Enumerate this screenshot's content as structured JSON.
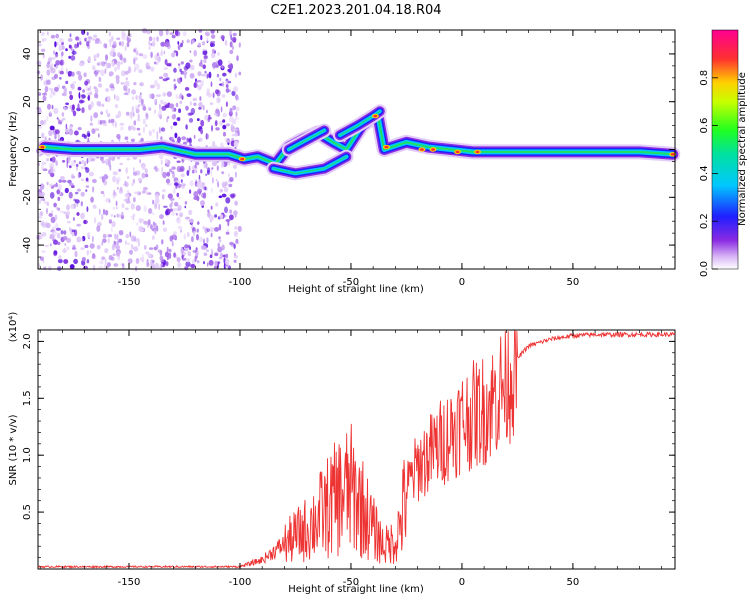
{
  "title": "C2E1.2023.201.04.18.R04",
  "colors": {
    "snr_line": "#ee3333",
    "axis": "#000000",
    "scatter_purple": "#8a2be2"
  },
  "chart_data": [
    {
      "type": "heatmap",
      "xlabel": "Height of straight line (km)",
      "ylabel": "Frequency (Hz)",
      "xlim": [
        -191,
        96
      ],
      "ylim": [
        -50,
        50
      ],
      "xticks": [
        -150,
        -100,
        -50,
        0,
        50
      ],
      "yticks": [
        -40,
        -20,
        0,
        20,
        40
      ],
      "colorbar": {
        "label": "Normalized spectral amplitude",
        "range": [
          0,
          1
        ],
        "ticks": [
          "0.0",
          "0.2",
          "0.4",
          "0.6",
          "0.8"
        ]
      },
      "ridge": [
        {
          "x": -188,
          "y": 1
        },
        {
          "x": -175,
          "y": 0
        },
        {
          "x": -160,
          "y": 0
        },
        {
          "x": -145,
          "y": 0
        },
        {
          "x": -135,
          "y": 1
        },
        {
          "x": -120,
          "y": -2
        },
        {
          "x": -105,
          "y": -2
        },
        {
          "x": -98,
          "y": -4
        },
        {
          "x": -92,
          "y": -3
        },
        {
          "x": -84,
          "y": -6
        },
        {
          "x": -78,
          "y": 1
        },
        {
          "x": -72,
          "y": 4
        },
        {
          "x": -65,
          "y": 7
        },
        {
          "x": -58,
          "y": 3
        },
        {
          "x": -52,
          "y": 0
        },
        {
          "x": -45,
          "y": 10
        },
        {
          "x": -38,
          "y": 15
        },
        {
          "x": -35,
          "y": 0
        },
        {
          "x": -25,
          "y": 3
        },
        {
          "x": -15,
          "y": 1
        },
        {
          "x": -5,
          "y": 0
        },
        {
          "x": 5,
          "y": -1
        },
        {
          "x": 20,
          "y": -1
        },
        {
          "x": 40,
          "y": -1
        },
        {
          "x": 60,
          "y": -1
        },
        {
          "x": 80,
          "y": -1
        },
        {
          "x": 95,
          "y": -2
        }
      ],
      "branches": [
        [
          {
            "x": -85,
            "y": -8
          },
          {
            "x": -75,
            "y": -10
          },
          {
            "x": -62,
            "y": -8
          },
          {
            "x": -52,
            "y": -3
          }
        ],
        [
          {
            "x": -78,
            "y": 0
          },
          {
            "x": -70,
            "y": 4
          },
          {
            "x": -62,
            "y": 8
          }
        ],
        [
          {
            "x": -55,
            "y": 6
          },
          {
            "x": -47,
            "y": 10
          },
          {
            "x": -40,
            "y": 14
          },
          {
            "x": -37,
            "y": 16
          }
        ]
      ],
      "hotspots": [
        {
          "x": -189,
          "y": 1
        },
        {
          "x": -99,
          "y": -4
        },
        {
          "x": -39,
          "y": 14
        },
        {
          "x": -34,
          "y": 1
        },
        {
          "x": -18,
          "y": 0
        },
        {
          "x": -13,
          "y": 0
        },
        {
          "x": -2,
          "y": -1
        },
        {
          "x": 7,
          "y": -1
        },
        {
          "x": 95,
          "y": -2
        }
      ]
    },
    {
      "type": "line",
      "xlabel": "Height of straight line (km)",
      "ylabel": "SNR (10 * v/v)",
      "y_multiplier": "(x10⁴)",
      "xlim": [
        -191,
        96
      ],
      "ylim": [
        0.0,
        2.1
      ],
      "xticks": [
        -150,
        -100,
        -50,
        0,
        50
      ],
      "yticks": [
        0.5,
        1.0,
        1.5,
        2.0
      ],
      "series": [
        {
          "values": [
            [
              -191,
              0.02
            ],
            [
              -150,
              0.02
            ],
            [
              -120,
              0.02
            ],
            [
              -100,
              0.02
            ],
            [
              -90,
              0.08
            ],
            [
              -80,
              0.22
            ],
            [
              -70,
              0.35
            ],
            [
              -65,
              0.45
            ],
            [
              -60,
              0.55
            ],
            [
              -55,
              0.65
            ],
            [
              -50,
              0.7
            ],
            [
              -45,
              0.55
            ],
            [
              -40,
              0.35
            ],
            [
              -35,
              0.2
            ],
            [
              -30,
              0.25
            ],
            [
              -27,
              0.45
            ],
            [
              -25,
              0.7
            ],
            [
              -20,
              0.9
            ],
            [
              -15,
              1.0
            ],
            [
              -10,
              1.1
            ],
            [
              -5,
              1.2
            ],
            [
              0,
              1.3
            ],
            [
              5,
              1.35
            ],
            [
              10,
              1.4
            ],
            [
              15,
              1.5
            ],
            [
              20,
              1.65
            ],
            [
              25,
              1.85
            ],
            [
              30,
              1.96
            ],
            [
              40,
              2.02
            ],
            [
              50,
              2.05
            ],
            [
              60,
              2.06
            ],
            [
              70,
              2.06
            ],
            [
              80,
              2.06
            ],
            [
              90,
              2.06
            ],
            [
              96,
              2.06
            ]
          ]
        }
      ]
    }
  ]
}
